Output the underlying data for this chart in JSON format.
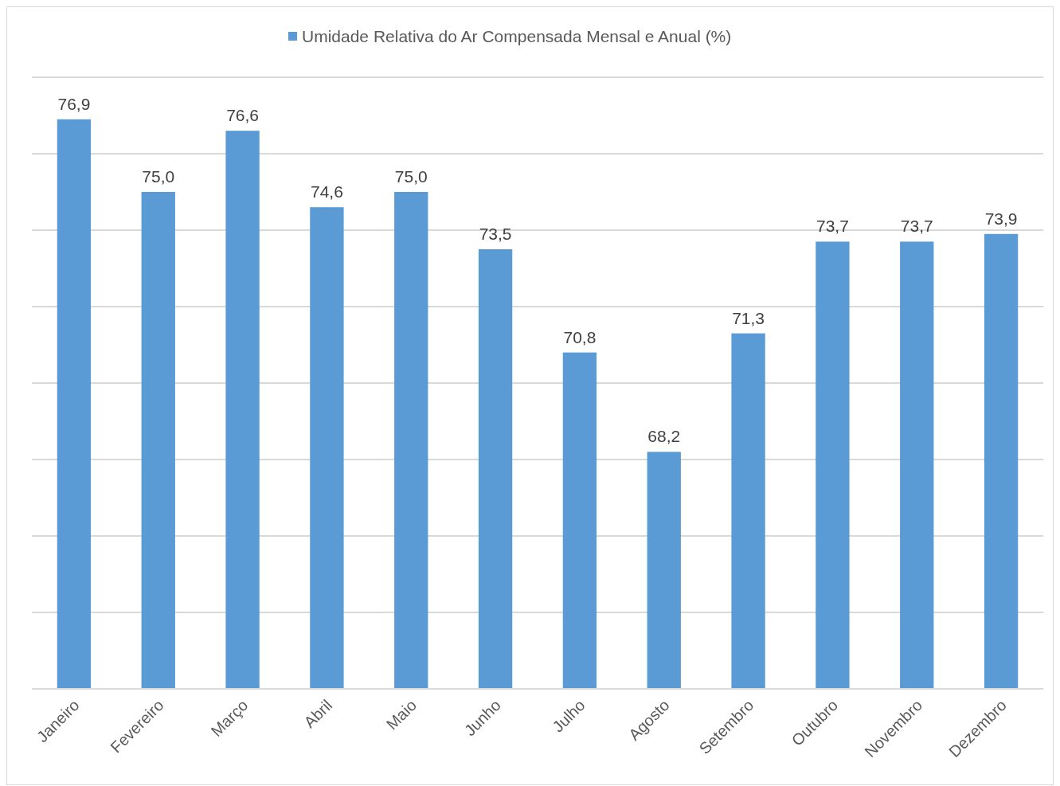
{
  "chart_data": {
    "type": "bar",
    "categories": [
      "Janeiro",
      "Fevereiro",
      "Março",
      "Abril",
      "Maio",
      "Junho",
      "Julho",
      "Agosto",
      "Setembro",
      "Outubro",
      "Novembro",
      "Dezembro"
    ],
    "series": [
      {
        "name": "Umidade Relativa do Ar Compensada Mensal e Anual (%)",
        "color": "#5b9bd5",
        "values": [
          76.9,
          75.0,
          76.6,
          74.6,
          75.0,
          73.5,
          70.8,
          68.2,
          71.3,
          73.7,
          73.7,
          73.9
        ],
        "value_labels": [
          "76,9",
          "75,0",
          "76,6",
          "74,6",
          "75,0",
          "73,5",
          "70,8",
          "68,2",
          "71,3",
          "73,7",
          "73,7",
          "73,9"
        ]
      }
    ],
    "ylim": [
      62,
      78
    ],
    "yticks": [
      {
        "value": 62,
        "label": null
      },
      {
        "value": 64,
        "label": null
      },
      {
        "value": 66,
        "label": null
      },
      {
        "value": 68,
        "label": null
      },
      {
        "value": 70,
        "label": null
      },
      {
        "value": 72,
        "label": null
      },
      {
        "value": 74,
        "label": null
      },
      {
        "value": 76,
        "label": null
      },
      {
        "value": 78,
        "label": null
      }
    ],
    "tick_labels": "x",
    "grid": "y",
    "legend": "top"
  }
}
